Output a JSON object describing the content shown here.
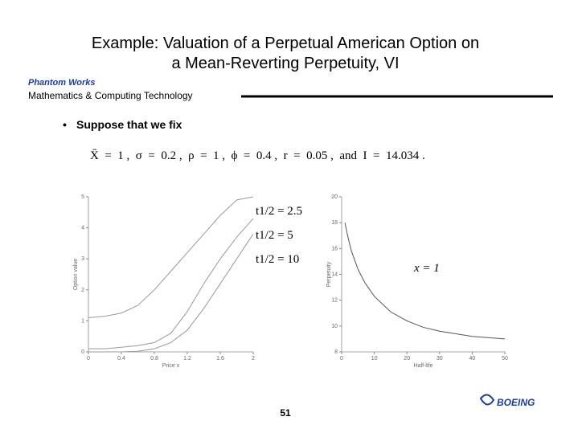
{
  "header": {
    "title_line1": "Example:  Valuation of a Perpetual American Option on",
    "title_line2": "a Mean-Reverting Perpetuity, VI",
    "brand": "Phantom Works",
    "division": "Mathematics & Computing Technology"
  },
  "bullet": "Suppose that we fix",
  "formula": "X̄  =  1 ,  σ  =  0.2 ,  ρ  =  1 ,  ϕ  =  0.4 ,  r  =  0.05 ,  and  I  =  14.034 .",
  "charts": [
    {
      "type": "line",
      "xlabel": "Price x",
      "ylabel": "Option value",
      "xlim": [
        0,
        2
      ],
      "ylim": [
        0,
        5
      ],
      "xticks": [
        0,
        0.4,
        0.8,
        1.2,
        1.6,
        2
      ],
      "yticks": [
        0,
        1,
        2,
        3,
        4,
        5
      ],
      "x": [
        0,
        0.2,
        0.4,
        0.6,
        0.8,
        1.0,
        1.2,
        1.4,
        1.6,
        1.8,
        2.0
      ],
      "series": [
        {
          "name": "t1/2 = 2.5",
          "color": "#999999",
          "values": [
            1.1,
            1.15,
            1.25,
            1.5,
            2.0,
            2.6,
            3.2,
            3.8,
            4.4,
            4.9,
            5.0
          ]
        },
        {
          "name": "t1/2 = 5",
          "color": "#999999",
          "values": [
            0.1,
            0.1,
            0.15,
            0.2,
            0.3,
            0.6,
            1.3,
            2.2,
            3.0,
            3.7,
            4.3
          ]
        },
        {
          "name": "t1/2 = 10",
          "color": "#999999",
          "values": [
            0.0,
            0.0,
            0.0,
            0.02,
            0.1,
            0.3,
            0.7,
            1.4,
            2.2,
            3.0,
            3.8
          ]
        }
      ]
    },
    {
      "type": "line",
      "xlabel": "Half-life",
      "ylabel": "Perpetuity",
      "xlim": [
        0,
        50
      ],
      "ylim": [
        8,
        20
      ],
      "xticks": [
        0,
        10,
        20,
        30,
        40,
        50
      ],
      "yticks": [
        8,
        10,
        12,
        14,
        16,
        18,
        20
      ],
      "x": [
        1,
        2,
        3,
        5,
        7,
        10,
        15,
        20,
        25,
        30,
        40,
        50
      ],
      "series": [
        {
          "name": "x = 1",
          "color": "#555555",
          "values": [
            18,
            16.8,
            15.8,
            14.4,
            13.4,
            12.3,
            11.1,
            10.4,
            9.9,
            9.6,
            9.2,
            9.0
          ]
        }
      ]
    }
  ],
  "page_number": "51",
  "logo": "BOEING"
}
